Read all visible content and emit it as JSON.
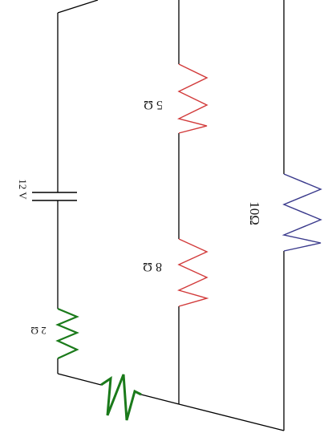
{
  "diagram": {
    "battery": {
      "label": "12 V"
    },
    "resistors": [
      {
        "label": "5 Ω",
        "color": "#d23b3b"
      },
      {
        "label": "8 Ω",
        "color": "#d23b3b"
      },
      {
        "label": "10Ω",
        "color": "#3a3a8c"
      },
      {
        "label": "2 Ω",
        "color": "#1a7a1a"
      },
      {
        "label": "",
        "color": "#1a7a1a"
      }
    ],
    "wire_color": "#000000"
  }
}
